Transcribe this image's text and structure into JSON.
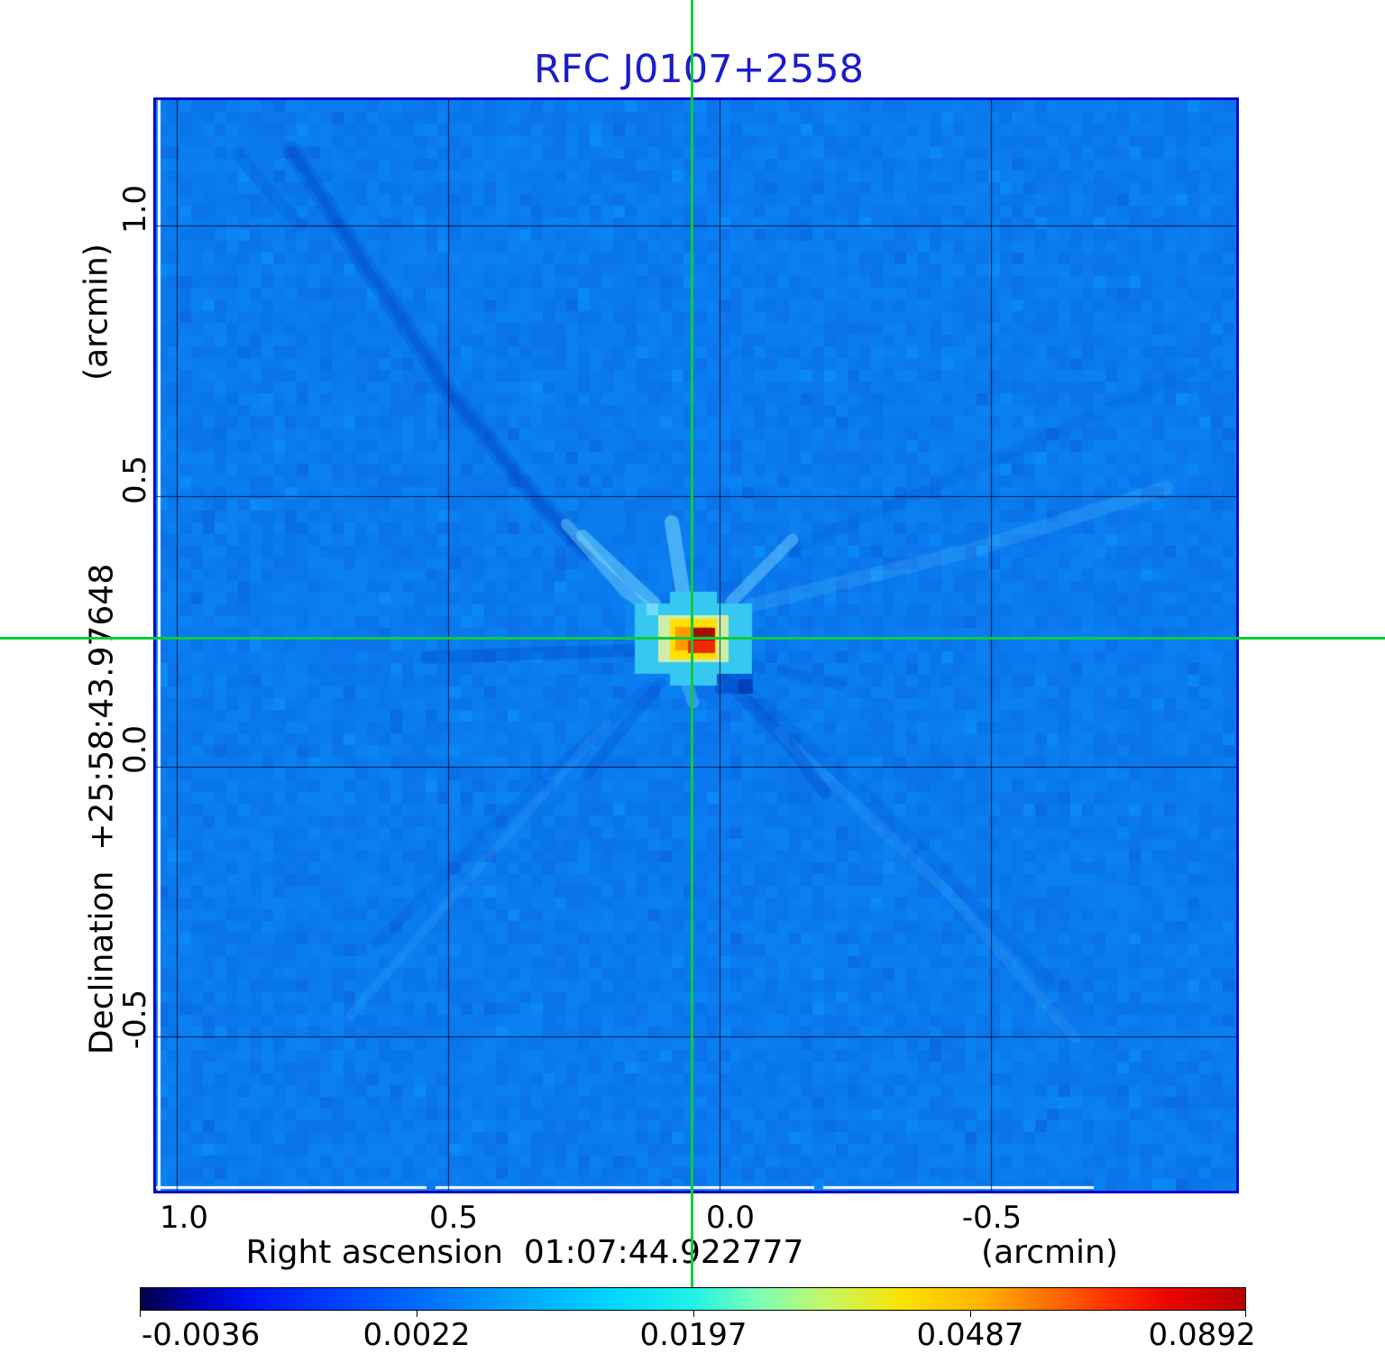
{
  "title": {
    "text": "RFC J0107+2558",
    "color": "#1c1ccd"
  },
  "axes": {
    "x": {
      "title": "Right ascension  01:07:44.922777",
      "unit_label": "(arcmin)",
      "ticks": [
        "1.0",
        "0.5",
        "0.0",
        "-0.5"
      ]
    },
    "y": {
      "title": "Declination  +25:58:43.97648",
      "unit_label": "(arcmin)",
      "ticks": [
        "1.0",
        "0.5",
        "0.0",
        "-0.5"
      ]
    }
  },
  "colorbar": {
    "tick_labels": [
      "-0.0036",
      "0.0022",
      "0.0197",
      "0.0487",
      "0.0892"
    ],
    "min_color": "#000046",
    "max_color": "#b80000"
  },
  "crosshair": {
    "color": "#0ecb3a",
    "x_arcmin": 0.05,
    "y_arcmin": 0.23
  },
  "chart_data": {
    "type": "heatmap",
    "title": "RFC J0107+2558",
    "xlabel": "Right ascension  01:07:44.922777 (arcmin)",
    "ylabel": "Declination  +25:58:43.97648 (arcmin)",
    "x_ticks_arcmin": [
      1.0,
      0.5,
      0.0,
      -0.5
    ],
    "y_ticks_arcmin": [
      1.0,
      0.5,
      0.0,
      -0.5
    ],
    "x_range_arcmin": [
      1.04,
      -0.96
    ],
    "y_range_arcmin": [
      -0.79,
      1.23
    ],
    "grid": true,
    "colorbar_ticks": [
      -0.0036,
      0.0022,
      0.0197,
      0.0487,
      0.0892
    ],
    "intensity_min": -0.0036,
    "intensity_max": 0.0892,
    "background_level_estimate": 0.002,
    "peak": {
      "value": 0.0892,
      "x_arcmin": 0.05,
      "y_arcmin": 0.23
    },
    "marker": "green crosshair through peak, extending across full figure and down to colorbar",
    "features": [
      "compact bright VLBI source at crosshair: dark-red core, red/orange/yellow rings, pale-green and cyan halo",
      "dark blue diagonal sidelobe streak from upper-left toward the source",
      "cyan spokes radiating up, up-left and up-right from the source",
      "dark negative sidelobe blobs just below-left and below-right of the source",
      "faint diagonal sidelobe streaks toward lower-left, lower-right and upper-right",
      "uniform azure-blue noise background with blocky pixelation"
    ]
  }
}
